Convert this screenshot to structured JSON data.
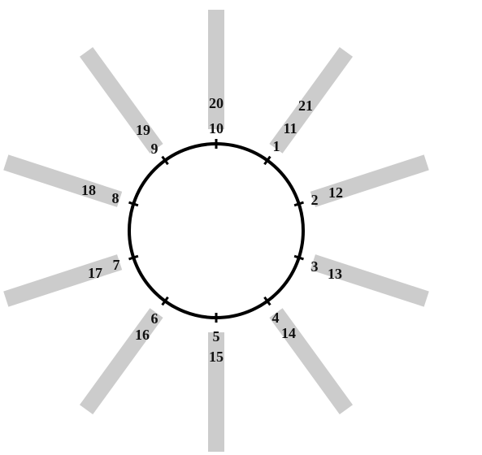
{
  "diagram": {
    "spokes": [
      {
        "id": "spoke-up",
        "angle_deg": 90,
        "labels": {
          "inner": "10",
          "outer": "20"
        }
      },
      {
        "id": "spoke-up-right",
        "angle_deg": 54,
        "labels": {
          "inner": "1",
          "mid": "11",
          "outer": "21"
        }
      },
      {
        "id": "spoke-right-upper",
        "angle_deg": 18,
        "labels": {
          "inner": "2",
          "outer": "12"
        }
      },
      {
        "id": "spoke-right-lower",
        "angle_deg": -18,
        "labels": {
          "inner": "3",
          "outer": "13"
        }
      },
      {
        "id": "spoke-down-right",
        "angle_deg": -54,
        "labels": {
          "inner": "4",
          "outer": "14"
        }
      },
      {
        "id": "spoke-down",
        "angle_deg": -90,
        "labels": {
          "inner": "5",
          "outer": "15"
        }
      },
      {
        "id": "spoke-down-left",
        "angle_deg": -126,
        "labels": {
          "inner": "6",
          "outer": "16"
        }
      },
      {
        "id": "spoke-left-lower",
        "angle_deg": -162,
        "labels": {
          "inner": "7",
          "outer": "17"
        }
      },
      {
        "id": "spoke-left-upper",
        "angle_deg": 162,
        "labels": {
          "inner": "8",
          "outer": "18"
        }
      },
      {
        "id": "spoke-up-left",
        "angle_deg": 126,
        "labels": {
          "inner": "9",
          "outer": "19"
        }
      }
    ],
    "colors": {
      "spoke": "#cccccc",
      "circle": "#000000",
      "text": "#111111",
      "background": "#ffffff"
    }
  }
}
